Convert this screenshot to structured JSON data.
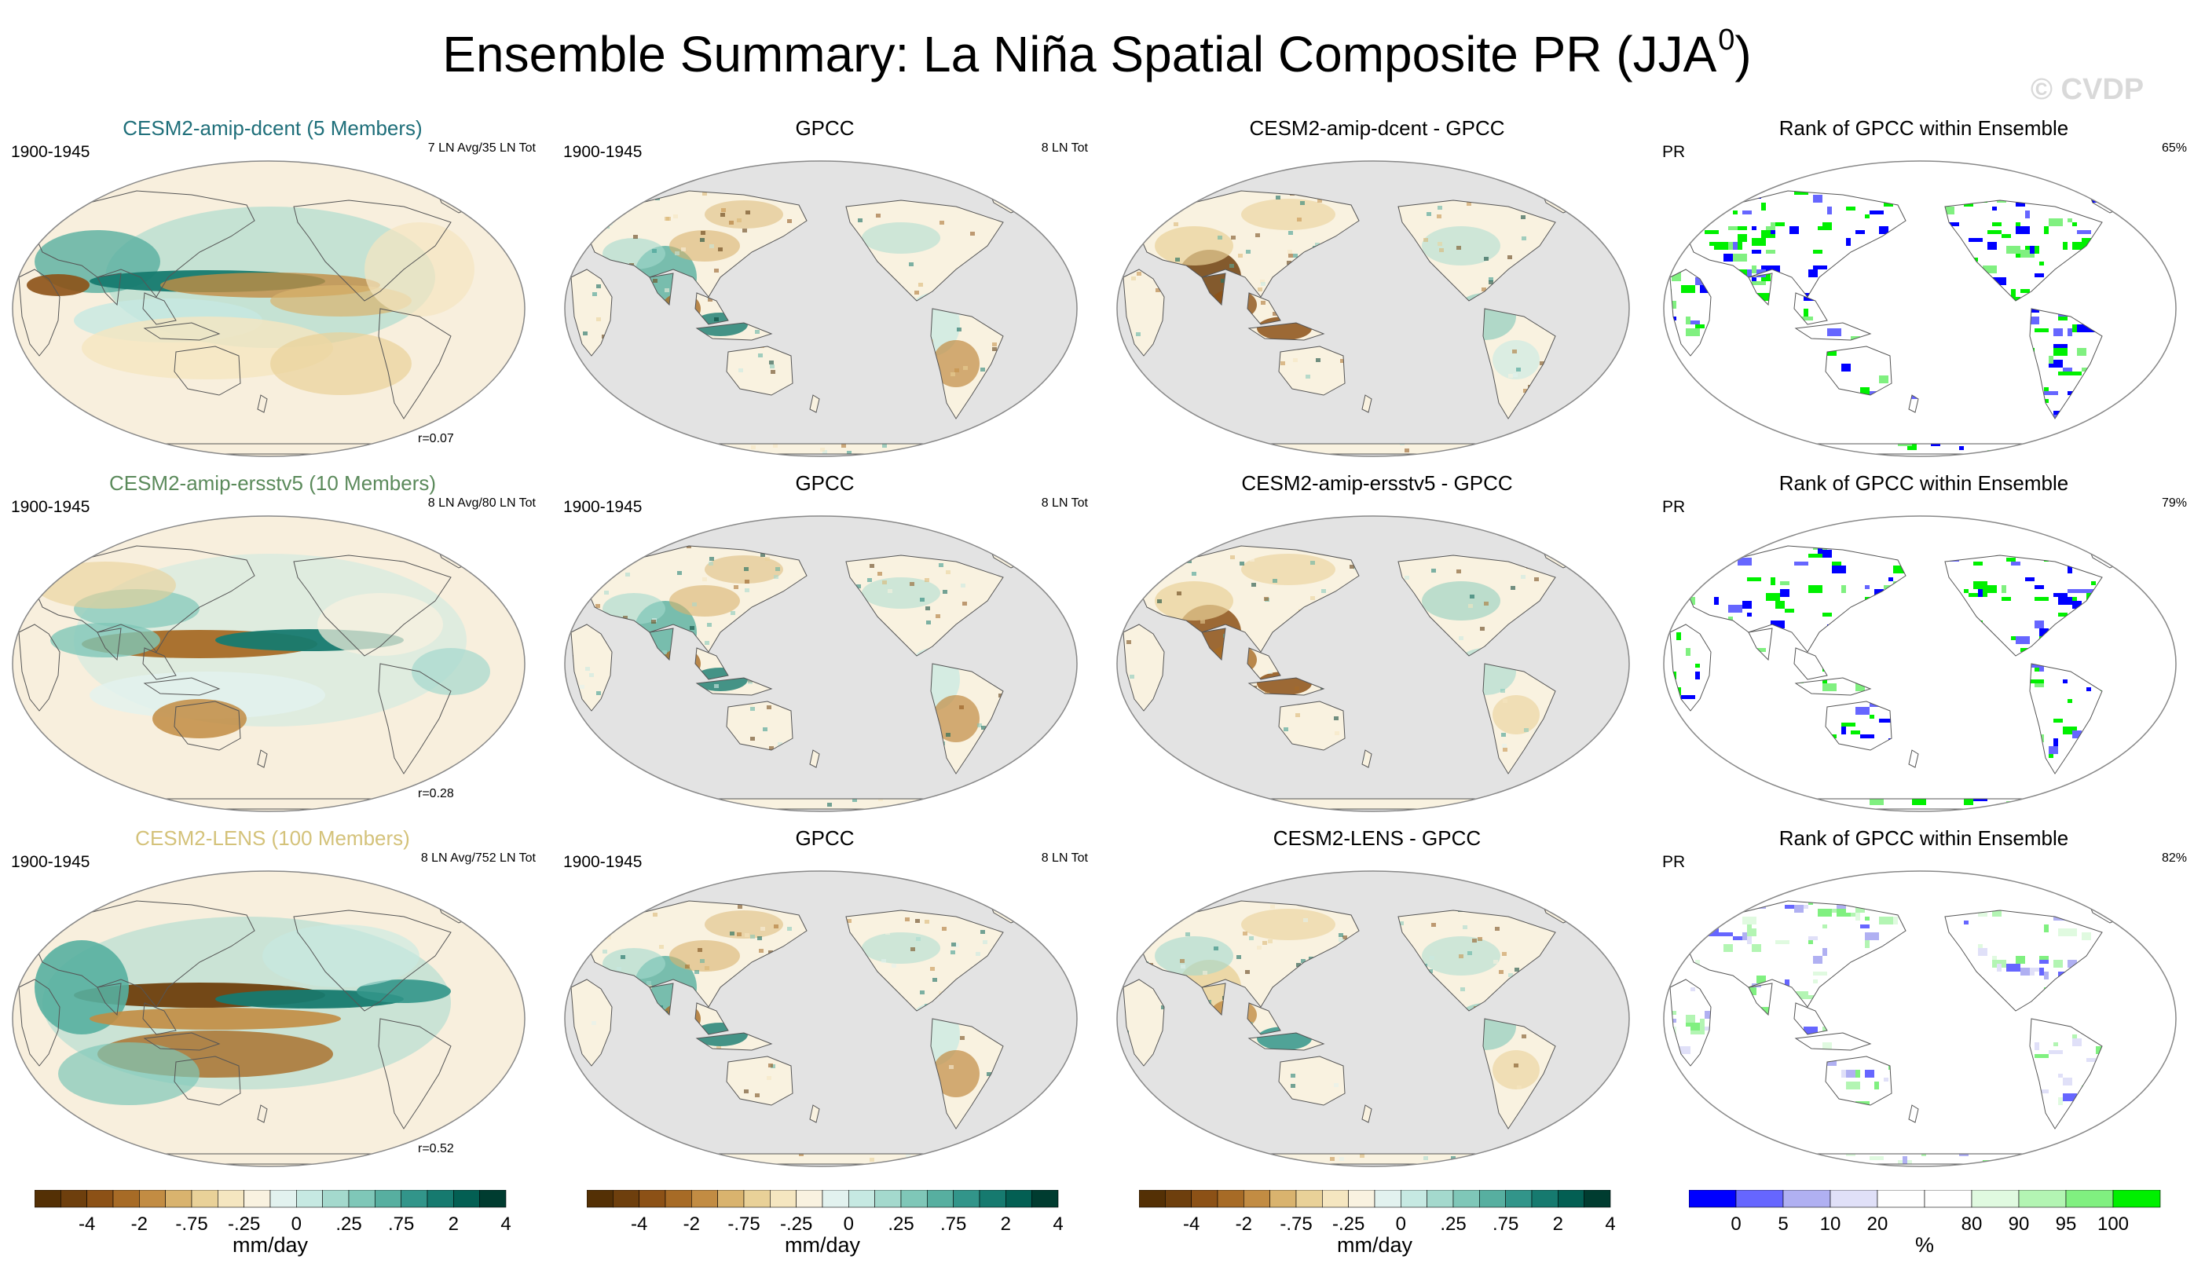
{
  "title": "Ensemble Summary: La Niña Spatial Composite PR (JJA",
  "title_sup": "0",
  "title_close": ")",
  "watermark": "© CVDP",
  "rows": [
    {
      "model_title": "CESM2-amip-dcent (5 Members)",
      "model_color": "#1f6f7a",
      "period": "1900-1945",
      "model_note": "7 LN Avg/35 LN Tot",
      "corr": "r=0.07",
      "obs_title": "GPCC",
      "obs_period": "1900-1945",
      "obs_note": "8 LN Tot",
      "diff_title": "CESM2-amip-dcent - GPCC",
      "rank_title": "Rank of GPCC within Ensemble",
      "rank_var": "PR",
      "rank_pct": "65%"
    },
    {
      "model_title": "CESM2-amip-ersstv5 (10 Members)",
      "model_color": "#5b8a5b",
      "period": "1900-1945",
      "model_note": "8 LN Avg/80 LN Tot",
      "corr": "r=0.28",
      "obs_title": "GPCC",
      "obs_period": "1900-1945",
      "obs_note": "8 LN Tot",
      "diff_title": "CESM2-amip-ersstv5 - GPCC",
      "rank_title": "Rank of GPCC within Ensemble",
      "rank_var": "PR",
      "rank_pct": "79%"
    },
    {
      "model_title": "CESM2-LENS (100 Members)",
      "model_color": "#d4c27a",
      "period": "1900-1945",
      "model_note": "8 LN Avg/752 LN Tot",
      "corr": "r=0.52",
      "obs_title": "GPCC",
      "obs_period": "1900-1945",
      "obs_note": "8 LN Tot",
      "diff_title": "CESM2-LENS - GPCC",
      "rank_title": "Rank of GPCC within Ensemble",
      "rank_var": "PR",
      "rank_pct": "82%"
    }
  ],
  "colorbars": {
    "precip": {
      "label": "mm/day",
      "ticks": [
        "-4",
        "-2",
        "-.75",
        "-.25",
        "0",
        ".25",
        ".75",
        "2",
        "4"
      ],
      "colors": [
        "#543005",
        "#6e3f0d",
        "#8c5116",
        "#a76b26",
        "#c28c43",
        "#d9b36e",
        "#e9d198",
        "#f5e6c0",
        "#f9f2e0",
        "#e2f2ef",
        "#c6e9e2",
        "#a4d9cd",
        "#7fc7b8",
        "#57afa0",
        "#32958a",
        "#167a6f",
        "#035f53",
        "#003c30"
      ]
    },
    "rank": {
      "label": "%",
      "ticks": [
        "0",
        "5",
        "10",
        "20",
        "80",
        "90",
        "95",
        "100"
      ],
      "colors": [
        "#0000ff",
        "#6666ff",
        "#b0b0f2",
        "#e0e0f8",
        "#ffffff",
        "#ffffff",
        "#e0fae0",
        "#b3f5b3",
        "#80f080",
        "#00f000"
      ]
    }
  },
  "colors": {
    "ocean_grey": "#e3e3e3",
    "land_outline": "#555555",
    "map_border": "#888888"
  }
}
